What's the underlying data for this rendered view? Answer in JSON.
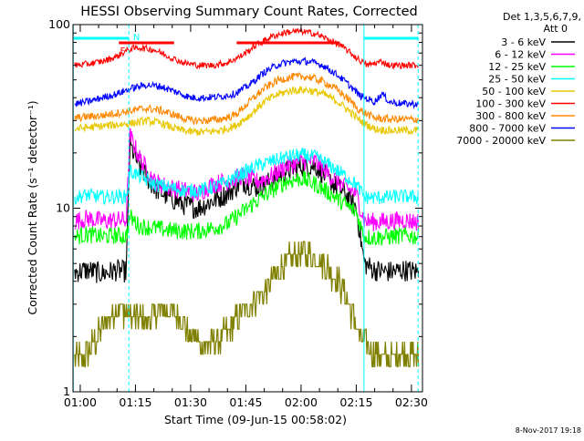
{
  "chart_data": {
    "type": "line",
    "title": "HESSI Observing Summary Count Rates, Corrected",
    "xlabel": "Start Time (09-Jun-15 00:58:02)",
    "ylabel": "Corrected Count Rate (s⁻¹ detector⁻¹)",
    "y_scale": "log",
    "ylim": [
      1,
      100
    ],
    "xlim_minutes": [
      58.03,
      153.0
    ],
    "x_ticks": [
      {
        "label": "01:00",
        "minutes": 60
      },
      {
        "label": "01:15",
        "minutes": 75
      },
      {
        "label": "01:30",
        "minutes": 90
      },
      {
        "label": "01:45",
        "minutes": 105
      },
      {
        "label": "02:00",
        "minutes": 120
      },
      {
        "label": "02:15",
        "minutes": 135
      },
      {
        "label": "02:30",
        "minutes": 150
      }
    ],
    "y_ticks": [
      {
        "label": "1",
        "value": 1
      },
      {
        "label": "10",
        "value": 10
      },
      {
        "label": "100",
        "value": 100
      }
    ],
    "legend_title": [
      "Det 1,3,5,6,7,9,",
      "Att 0"
    ],
    "legend_position": "right",
    "timestamp": "8-Nov-2017 19:18",
    "flag_labels": [
      {
        "text": "F",
        "minutes": 71.5,
        "color": "#ff0000"
      },
      {
        "text": "N",
        "minutes": 75.3,
        "color": "#00ffff"
      }
    ],
    "cyan_lines_minutes": [
      {
        "at": 58.1,
        "dashed": false
      },
      {
        "at": 73.2,
        "dashed": true
      },
      {
        "at": 137.1,
        "dashed": false
      },
      {
        "at": 151.8,
        "dashed": true
      }
    ],
    "series": [
      {
        "name": "3 - 6 keV",
        "color": "#000000",
        "points": [
          [
            58.5,
            4.5
          ],
          [
            62,
            4.6
          ],
          [
            66,
            4.4
          ],
          [
            70,
            4.6
          ],
          [
            72.5,
            4.5
          ],
          [
            73.5,
            22
          ],
          [
            76,
            17
          ],
          [
            80,
            13
          ],
          [
            84,
            11.5
          ],
          [
            88,
            10.5
          ],
          [
            92,
            10
          ],
          [
            96,
            11
          ],
          [
            100,
            12
          ],
          [
            104,
            14
          ],
          [
            108,
            13
          ],
          [
            112,
            14
          ],
          [
            116,
            16
          ],
          [
            120,
            17
          ],
          [
            124,
            17
          ],
          [
            128,
            14
          ],
          [
            132,
            12
          ],
          [
            135,
            10
          ],
          [
            137.2,
            5
          ],
          [
            140,
            4.6
          ],
          [
            144,
            4.5
          ],
          [
            148,
            4.6
          ],
          [
            152,
            4.5
          ]
        ]
      },
      {
        "name": "6 - 12 keV",
        "color": "#ff00ff",
        "points": [
          [
            58.5,
            8.5
          ],
          [
            62,
            8.8
          ],
          [
            66,
            8.5
          ],
          [
            70,
            8.6
          ],
          [
            72.5,
            8.6
          ],
          [
            73.5,
            25
          ],
          [
            76,
            19
          ],
          [
            80,
            14
          ],
          [
            84,
            13
          ],
          [
            88,
            12.5
          ],
          [
            92,
            12
          ],
          [
            96,
            13.5
          ],
          [
            100,
            14
          ],
          [
            104,
            15
          ],
          [
            108,
            14
          ],
          [
            112,
            15
          ],
          [
            116,
            17
          ],
          [
            120,
            18
          ],
          [
            124,
            18
          ],
          [
            128,
            15
          ],
          [
            132,
            13
          ],
          [
            135,
            12
          ],
          [
            137.2,
            8.5
          ],
          [
            140,
            8.4
          ],
          [
            144,
            8.5
          ],
          [
            148,
            8.6
          ],
          [
            152,
            8.4
          ]
        ]
      },
      {
        "name": "12 - 25 keV",
        "color": "#00ff00",
        "points": [
          [
            58.5,
            7
          ],
          [
            62,
            7.2
          ],
          [
            66,
            7
          ],
          [
            70,
            7.1
          ],
          [
            72.5,
            7
          ],
          [
            73.5,
            9
          ],
          [
            76,
            8
          ],
          [
            80,
            7.8
          ],
          [
            84,
            7.6
          ],
          [
            88,
            7.5
          ],
          [
            92,
            7.5
          ],
          [
            96,
            7.8
          ],
          [
            100,
            8.2
          ],
          [
            104,
            9.5
          ],
          [
            108,
            11
          ],
          [
            112,
            12.5
          ],
          [
            116,
            14
          ],
          [
            120,
            14.5
          ],
          [
            124,
            13.5
          ],
          [
            128,
            12
          ],
          [
            132,
            10.5
          ],
          [
            135,
            9.5
          ],
          [
            137.2,
            7
          ],
          [
            140,
            6.9
          ],
          [
            144,
            7
          ],
          [
            148,
            7.1
          ],
          [
            152,
            7
          ]
        ]
      },
      {
        "name": "25 - 50 keV",
        "color": "#00ffff",
        "points": [
          [
            58.5,
            11.5
          ],
          [
            62,
            11.8
          ],
          [
            66,
            11.5
          ],
          [
            70,
            11.6
          ],
          [
            72.5,
            11.5
          ],
          [
            73.5,
            16
          ],
          [
            76,
            15
          ],
          [
            80,
            13.5
          ],
          [
            84,
            13
          ],
          [
            88,
            12.5
          ],
          [
            92,
            12.5
          ],
          [
            96,
            13
          ],
          [
            100,
            14
          ],
          [
            104,
            15.5
          ],
          [
            108,
            17
          ],
          [
            112,
            18
          ],
          [
            116,
            19
          ],
          [
            120,
            19.5
          ],
          [
            124,
            19
          ],
          [
            128,
            17
          ],
          [
            132,
            15
          ],
          [
            135,
            13.5
          ],
          [
            137.2,
            11.5
          ],
          [
            140,
            11.4
          ],
          [
            144,
            11.5
          ],
          [
            148,
            11.6
          ],
          [
            152,
            11.5
          ]
        ]
      },
      {
        "name": "50 - 100 keV",
        "color": "#e8c800",
        "points": [
          [
            58.5,
            27
          ],
          [
            62,
            27.5
          ],
          [
            66,
            28
          ],
          [
            70,
            28.5
          ],
          [
            74,
            29
          ],
          [
            78,
            30
          ],
          [
            82,
            29
          ],
          [
            86,
            27
          ],
          [
            90,
            26
          ],
          [
            94,
            26
          ],
          [
            98,
            26.5
          ],
          [
            102,
            28
          ],
          [
            106,
            32
          ],
          [
            110,
            38
          ],
          [
            114,
            42
          ],
          [
            118,
            44
          ],
          [
            122,
            44
          ],
          [
            126,
            42
          ],
          [
            130,
            38
          ],
          [
            133,
            34
          ],
          [
            136,
            30
          ],
          [
            140,
            27
          ],
          [
            144,
            26.5
          ],
          [
            148,
            26.5
          ],
          [
            152,
            26.5
          ]
        ]
      },
      {
        "name": "100 - 300 keV",
        "color": "#ff0000",
        "points": [
          [
            58.5,
            60
          ],
          [
            62,
            61
          ],
          [
            66,
            63
          ],
          [
            70,
            67
          ],
          [
            72,
            71
          ],
          [
            74,
            74
          ],
          [
            76,
            75
          ],
          [
            80,
            73
          ],
          [
            84,
            67
          ],
          [
            88,
            62
          ],
          [
            92,
            60
          ],
          [
            96,
            60
          ],
          [
            100,
            62
          ],
          [
            104,
            68
          ],
          [
            108,
            78
          ],
          [
            112,
            86
          ],
          [
            116,
            91
          ],
          [
            120,
            92
          ],
          [
            124,
            89
          ],
          [
            128,
            82
          ],
          [
            132,
            74
          ],
          [
            135,
            66
          ],
          [
            138,
            60
          ],
          [
            142,
            63
          ],
          [
            144,
            60
          ],
          [
            148,
            60
          ],
          [
            152,
            60
          ]
        ]
      },
      {
        "name": "300 - 800 keV",
        "color": "#ff8800",
        "points": [
          [
            58.5,
            31
          ],
          [
            62,
            31.5
          ],
          [
            66,
            32
          ],
          [
            70,
            33
          ],
          [
            74,
            34
          ],
          [
            78,
            35
          ],
          [
            82,
            34
          ],
          [
            86,
            32
          ],
          [
            90,
            30
          ],
          [
            94,
            30
          ],
          [
            98,
            30.5
          ],
          [
            102,
            32
          ],
          [
            106,
            38
          ],
          [
            110,
            45
          ],
          [
            114,
            50
          ],
          [
            118,
            52
          ],
          [
            122,
            52
          ],
          [
            126,
            49
          ],
          [
            130,
            44
          ],
          [
            133,
            39
          ],
          [
            136,
            34
          ],
          [
            140,
            31
          ],
          [
            144,
            30.5
          ],
          [
            148,
            30.5
          ],
          [
            152,
            30.5
          ]
        ]
      },
      {
        "name": "800 - 7000 keV",
        "color": "#0000ff",
        "points": [
          [
            58.5,
            37
          ],
          [
            62,
            38
          ],
          [
            66,
            40
          ],
          [
            70,
            42
          ],
          [
            74,
            45
          ],
          [
            78,
            47
          ],
          [
            82,
            46
          ],
          [
            86,
            43
          ],
          [
            90,
            40
          ],
          [
            94,
            40
          ],
          [
            98,
            40.5
          ],
          [
            102,
            42
          ],
          [
            106,
            47
          ],
          [
            110,
            55
          ],
          [
            114,
            61
          ],
          [
            118,
            63
          ],
          [
            122,
            63
          ],
          [
            126,
            60
          ],
          [
            130,
            53
          ],
          [
            133,
            47
          ],
          [
            136,
            41
          ],
          [
            140,
            38
          ],
          [
            142,
            42
          ],
          [
            144,
            38
          ],
          [
            148,
            37
          ],
          [
            152,
            37
          ]
        ]
      },
      {
        "name": "7000 - 20000 keV",
        "color": "#808000",
        "points": [
          [
            58.5,
            1.5
          ],
          [
            62,
            1.6
          ],
          [
            66,
            2.2
          ],
          [
            70,
            2.9
          ],
          [
            74,
            2.6
          ],
          [
            78,
            2.4
          ],
          [
            82,
            2.8
          ],
          [
            86,
            2.7
          ],
          [
            90,
            2
          ],
          [
            94,
            1.8
          ],
          [
            98,
            1.9
          ],
          [
            102,
            2.4
          ],
          [
            106,
            3
          ],
          [
            110,
            3.5
          ],
          [
            114,
            4.6
          ],
          [
            118,
            5.5
          ],
          [
            122,
            5.6
          ],
          [
            126,
            5
          ],
          [
            130,
            4
          ],
          [
            133,
            3
          ],
          [
            136,
            2
          ],
          [
            140,
            1.6
          ],
          [
            144,
            1.5
          ],
          [
            148,
            1.6
          ],
          [
            152,
            1.5
          ]
        ]
      }
    ]
  }
}
